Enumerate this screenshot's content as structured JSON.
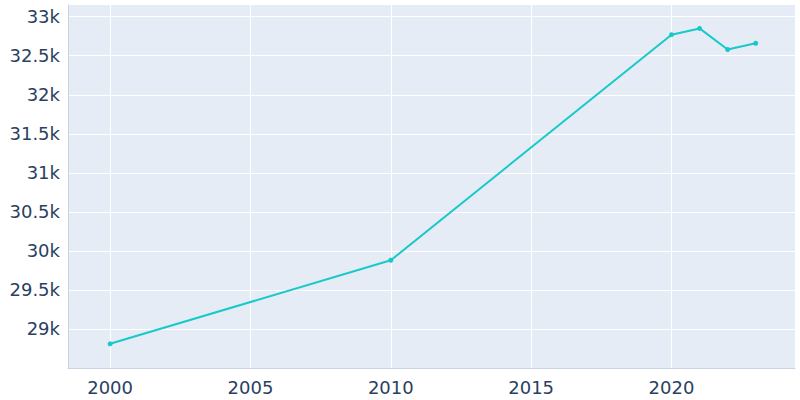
{
  "chart_data": {
    "type": "line",
    "x": [
      2000,
      2010,
      2020,
      2021,
      2022,
      2023
    ],
    "values": [
      28810,
      29880,
      32770,
      32850,
      32580,
      32660
    ],
    "color": "#17c9c9",
    "marker": "circle",
    "xlim": [
      1998.5,
      2024.4
    ],
    "xticks": [
      2000,
      2005,
      2010,
      2015,
      2020
    ],
    "ylim": [
      28500,
      33150
    ],
    "yticks": [
      {
        "value": 29000,
        "label": "29k"
      },
      {
        "value": 29500,
        "label": "29.5k"
      },
      {
        "value": 30000,
        "label": "30k"
      },
      {
        "value": 30500,
        "label": "30.5k"
      },
      {
        "value": 31000,
        "label": "31k"
      },
      {
        "value": 31500,
        "label": "31.5k"
      },
      {
        "value": 32000,
        "label": "32k"
      },
      {
        "value": 32500,
        "label": "32.5k"
      },
      {
        "value": 33000,
        "label": "33k"
      }
    ],
    "grid": true
  }
}
